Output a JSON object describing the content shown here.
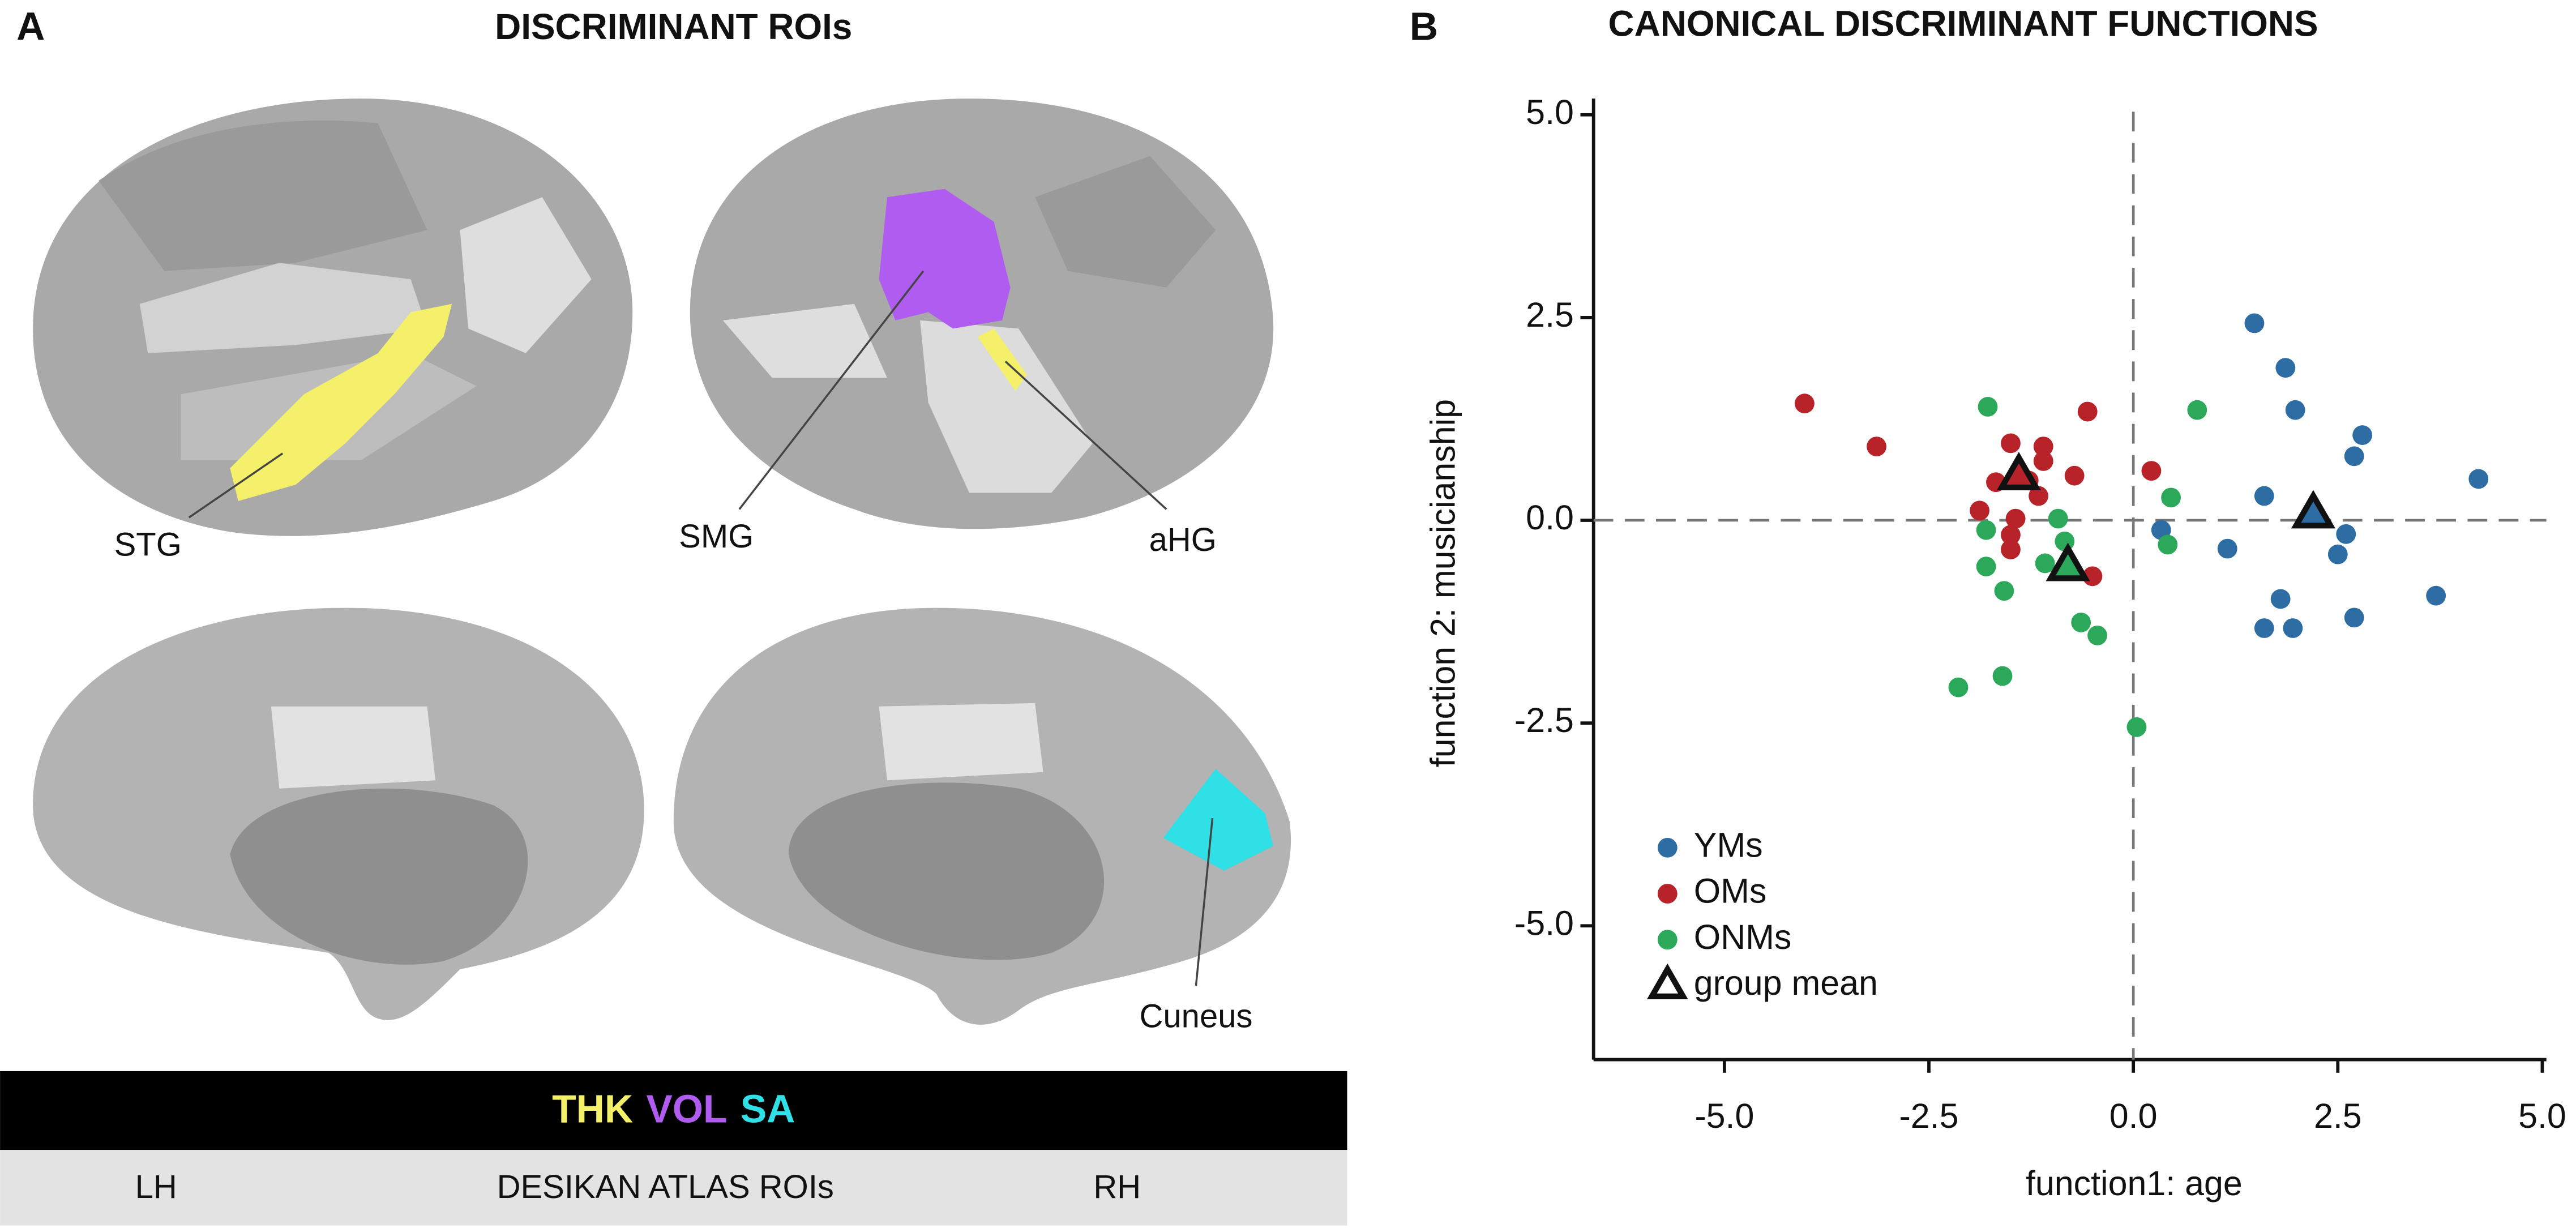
{
  "panel_a": {
    "letter": "A",
    "title": "DISCRIMINANT ROIs",
    "labels": [
      "STG",
      "SMG",
      "aHG",
      "Cuneus"
    ],
    "measures": [
      {
        "text": "THK",
        "color": "#f4f06a"
      },
      {
        "text": "VOL",
        "color": "#b05cf0"
      },
      {
        "text": "SA",
        "color": "#2fe0e6"
      }
    ],
    "footer": [
      "LH",
      "DESIKAN ATLAS ROIs",
      "RH"
    ]
  },
  "chart_data": {
    "type": "scatter",
    "letter": "B",
    "title": "CANONICAL DISCRIMINANT FUNCTIONS",
    "x_label": "function1: age",
    "y_label": "function 2: musicianship",
    "xlim": [
      -6.6,
      5.05
    ],
    "ylim": [
      -6.65,
      5.2
    ],
    "xticks": [
      {
        "value": -5,
        "label": "-5.0"
      },
      {
        "value": -2.5,
        "label": "-2.5"
      },
      {
        "value": 0,
        "label": "0.0"
      },
      {
        "value": 2.5,
        "label": "2.5"
      },
      {
        "value": 5,
        "label": "5.0"
      }
    ],
    "yticks": [
      {
        "value": -5,
        "label": "-5.0"
      },
      {
        "value": -2.5,
        "label": "-2.5"
      },
      {
        "value": 0,
        "label": "0.0"
      },
      {
        "value": 2.5,
        "label": "2.5"
      },
      {
        "value": 5,
        "label": "5.0"
      }
    ],
    "zero_lines": true,
    "legend": "lower left",
    "series": [
      {
        "name": "YMs",
        "color": "#2e6da4",
        "x": [
          1.48,
          1.86,
          1.98,
          2.8,
          2.7,
          4.22,
          1.6,
          0.34,
          1.15,
          2.6,
          2.5,
          3.7,
          1.8,
          1.6,
          1.95,
          2.7
        ],
        "values": [
          2.43,
          1.88,
          1.36,
          1.05,
          0.79,
          0.51,
          0.3,
          -0.12,
          -0.35,
          -0.17,
          -0.42,
          -0.93,
          -0.97,
          -1.33,
          -1.33,
          -1.2
        ]
      },
      {
        "name": "OMs",
        "color": "#b8232a",
        "x": [
          -4.02,
          -3.14,
          -1.5,
          -1.1,
          -1.1,
          -0.56,
          -1.68,
          -1.28,
          -0.72,
          0.22,
          -1.16,
          -1.88,
          -1.44,
          -1.5,
          -1.5,
          -0.5
        ],
        "values": [
          1.44,
          0.91,
          0.95,
          0.91,
          0.73,
          1.34,
          0.47,
          0.49,
          0.55,
          0.61,
          0.3,
          0.12,
          0.02,
          -0.18,
          -0.36,
          -0.69
        ]
      },
      {
        "name": "ONMs",
        "color": "#2ca85a",
        "x": [
          -1.78,
          0.78,
          0.46,
          -1.8,
          -0.92,
          -0.84,
          -1.08,
          -1.8,
          -1.58,
          0.42,
          -0.64,
          -0.44,
          -2.14,
          -1.6,
          0.04
        ],
        "values": [
          1.4,
          1.36,
          0.28,
          -0.12,
          0.02,
          -0.26,
          -0.53,
          -0.57,
          -0.87,
          -0.3,
          -1.26,
          -1.42,
          -2.06,
          -1.92,
          -2.55
        ]
      }
    ],
    "group_mean": {
      "name": "group mean",
      "color": "#111111",
      "x": [
        2.2,
        -1.4,
        -0.8
      ],
      "values": [
        0.08,
        0.55,
        -0.57
      ]
    }
  }
}
